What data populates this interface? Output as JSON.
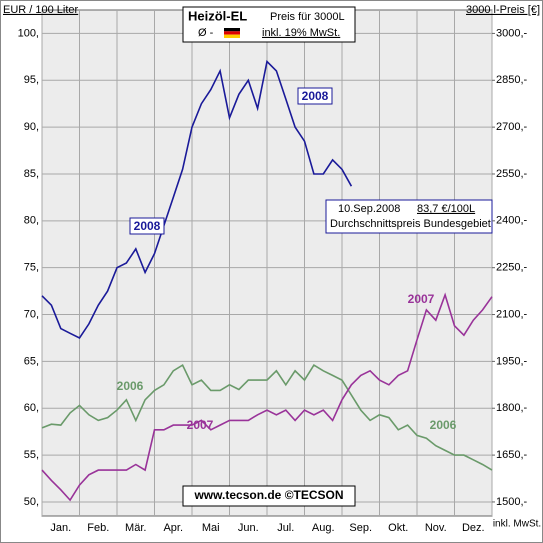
{
  "chart_data": {
    "type": "line",
    "title": "Heizöl-EL",
    "subtitle": "Preis für 3000L",
    "average_label": "Ø -",
    "tax_note": "inkl. 19% MwSt.",
    "ylabel": "EUR / 100 Liter",
    "y2label": "3000 l-Preis  [€]",
    "xlabel_note": "inkl. MwSt.",
    "source": "www.tecson.de  ©TECSON",
    "annotation": {
      "date": "10.Sep.2008",
      "price": "83,7 €/100L",
      "note": "Durchschnittspreis Bundesgebiet"
    },
    "categories": [
      "Jan.",
      "Feb.",
      "Mär.",
      "Apr.",
      "Mai",
      "Jun.",
      "Jul.",
      "Aug.",
      "Sep.",
      "Okt.",
      "Nov.",
      "Dez."
    ],
    "xlim": [
      0,
      12
    ],
    "xticks": [
      0,
      1,
      2,
      3,
      4,
      5,
      6,
      7,
      8,
      9,
      10,
      11,
      12
    ],
    "x": [
      0,
      0.25,
      0.5,
      0.75,
      1,
      1.25,
      1.5,
      1.75,
      2,
      2.25,
      2.5,
      2.75,
      3,
      3.25,
      3.5,
      3.75,
      4,
      4.25,
      4.5,
      4.75,
      5,
      5.25,
      5.5,
      5.75,
      6,
      6.25,
      6.5,
      6.75,
      7,
      7.25,
      7.5,
      7.75,
      8,
      8.25,
      8.5,
      8.75,
      9,
      9.25,
      9.5,
      9.75,
      10,
      10.25,
      10.5,
      10.75,
      11,
      11.25,
      11.5,
      11.75,
      12
    ],
    "ylim": [
      48.5,
      102.5
    ],
    "yticks": [
      {
        "value": 50,
        "label": "50,"
      },
      {
        "value": 55,
        "label": "55,"
      },
      {
        "value": 60,
        "label": "60,"
      },
      {
        "value": 65,
        "label": "65,"
      },
      {
        "value": 70,
        "label": "70,"
      },
      {
        "value": 75,
        "label": "75,"
      },
      {
        "value": 80,
        "label": "80,"
      },
      {
        "value": 85,
        "label": "85,"
      },
      {
        "value": 90,
        "label": "90,"
      },
      {
        "value": 95,
        "label": "95,"
      },
      {
        "value": 100,
        "label": "100,"
      }
    ],
    "y2lim": [
      1455,
      3075
    ],
    "y2ticks": [
      {
        "value": 1500,
        "label": "1500,-"
      },
      {
        "value": 1650,
        "label": "1650,-"
      },
      {
        "value": 1800,
        "label": "1800,-"
      },
      {
        "value": 1950,
        "label": "1950,-"
      },
      {
        "value": 2100,
        "label": "2100,-"
      },
      {
        "value": 2250,
        "label": "2250,-"
      },
      {
        "value": 2400,
        "label": "2400,-"
      },
      {
        "value": 2550,
        "label": "2550,-"
      },
      {
        "value": 2700,
        "label": "2700,-"
      },
      {
        "value": 2850,
        "label": "2850,-"
      },
      {
        "value": 3000,
        "label": "3000,-"
      }
    ],
    "grid": true,
    "series": [
      {
        "name": "2006",
        "color": "#6a9a6a",
        "values": [
          57.9,
          58.3,
          58.2,
          59.5,
          60.3,
          59.3,
          58.7,
          59,
          59.8,
          60.9,
          58.7,
          60.9,
          61.9,
          62.5,
          64,
          64.6,
          62.5,
          63,
          61.9,
          61.9,
          62.5,
          62,
          63,
          63,
          63,
          64,
          62.5,
          64,
          63,
          64.6,
          64,
          63.5,
          63,
          61.4,
          59.8,
          58.7,
          59.3,
          59,
          57.7,
          58.2,
          57.1,
          56.8,
          56,
          55.5,
          55,
          55,
          54.5,
          54,
          53.4
        ]
      },
      {
        "name": "2007",
        "color": "#993399",
        "values": [
          53.4,
          52.3,
          51.3,
          50.2,
          51.8,
          52.9,
          53.4,
          53.4,
          53.4,
          53.4,
          54,
          53.4,
          57.7,
          57.7,
          58.2,
          58.2,
          58.2,
          58.7,
          57.7,
          58.2,
          58.7,
          58.7,
          58.7,
          59.3,
          59.8,
          59.3,
          59.8,
          58.7,
          59.8,
          59.3,
          59.8,
          58.7,
          60.9,
          62.5,
          63.5,
          64,
          63,
          62.5,
          63.5,
          64,
          67.3,
          70.5,
          69.4,
          72.1,
          68.8,
          67.8,
          69.4,
          70.5,
          71.9
        ]
      },
      {
        "name": "2008",
        "color": "#1a1a99",
        "values": [
          72,
          71,
          68.5,
          68,
          67.5,
          69,
          71,
          72.5,
          75,
          75.5,
          77,
          74.5,
          76.5,
          79.5,
          82.5,
          85.5,
          90,
          92.5,
          94,
          96,
          91,
          93.5,
          95,
          92,
          97,
          96,
          93,
          90,
          88.5,
          85,
          85,
          86.5,
          85.5,
          83.7,
          null,
          null,
          null,
          null,
          null,
          null,
          null,
          null,
          null,
          null,
          null,
          null,
          null,
          null,
          null
        ]
      }
    ]
  }
}
